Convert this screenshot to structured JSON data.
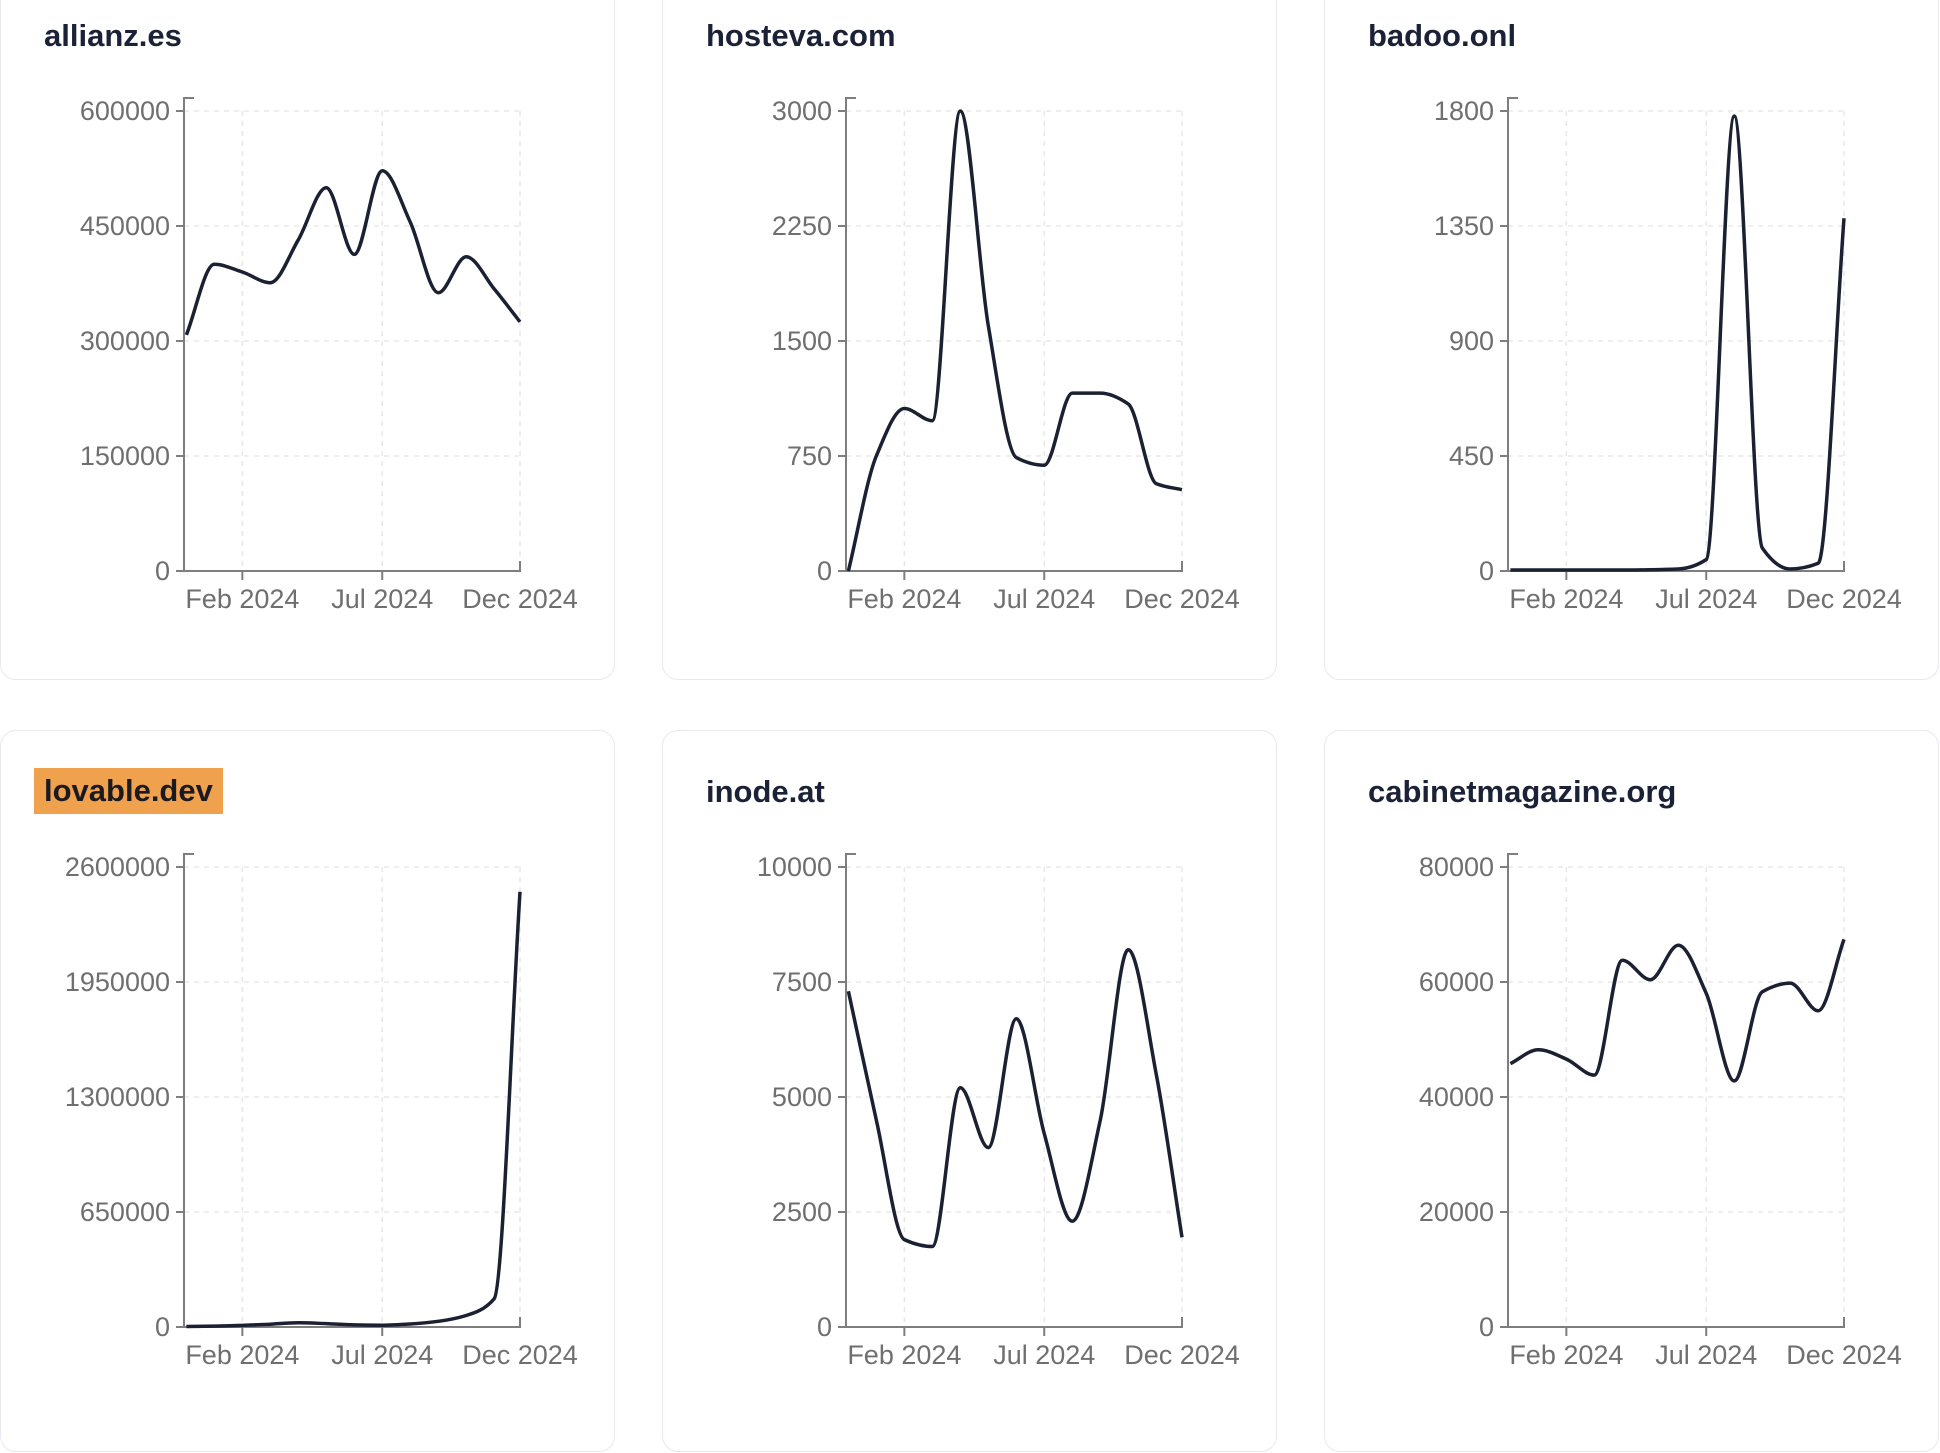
{
  "page": {
    "accent_highlight_color": "#f0a14e",
    "line_color": "#1b2132",
    "axis_color": "#7e7e7e",
    "grid_color": "#e8e8e8",
    "label_color": "#6f6f6f",
    "title_color": "#1b2237"
  },
  "chart_data": [
    {
      "type": "line",
      "title": "allianz.es",
      "highlighted": false,
      "x": [
        "Dec 2023",
        "Jan 2024",
        "Feb 2024",
        "Mar 2024",
        "Apr 2024",
        "May 2024",
        "Jun 2024",
        "Jul 2024",
        "Aug 2024",
        "Sep 2024",
        "Oct 2024",
        "Nov 2024",
        "Dec 2024"
      ],
      "values": [
        308000,
        400000,
        390000,
        376000,
        432000,
        500000,
        413000,
        522000,
        455000,
        363000,
        410000,
        368000,
        325000
      ],
      "y_ticks": [
        600000,
        450000,
        300000,
        150000,
        0
      ],
      "ylim": [
        0,
        600000
      ],
      "x_tick_labels": [
        "Feb 2024",
        "Jul 2024",
        "Dec 2024"
      ],
      "grid": "dashed",
      "legend": false
    },
    {
      "type": "line",
      "title": "hosteva.com",
      "highlighted": false,
      "x": [
        "Dec 2023",
        "Jan 2024",
        "Feb 2024",
        "Mar 2024",
        "Apr 2024",
        "May 2024",
        "Jun 2024",
        "Jul 2024",
        "Aug 2024",
        "Sep 2024",
        "Oct 2024",
        "Nov 2024",
        "Dec 2024"
      ],
      "values": [
        0,
        750,
        1060,
        980,
        3000,
        1600,
        740,
        690,
        1160,
        1160,
        1090,
        570,
        530
      ],
      "y_ticks": [
        3000,
        2250,
        1500,
        750,
        0
      ],
      "ylim": [
        0,
        3000
      ],
      "x_tick_labels": [
        "Feb 2024",
        "Jul 2024",
        "Dec 2024"
      ],
      "grid": "dashed",
      "legend": false
    },
    {
      "type": "line",
      "title": "badoo.onl",
      "highlighted": false,
      "x": [
        "Dec 2023",
        "Jan 2024",
        "Feb 2024",
        "Mar 2024",
        "Apr 2024",
        "May 2024",
        "Jun 2024",
        "Jul 2024",
        "Aug 2024",
        "Sep 2024",
        "Oct 2024",
        "Nov 2024",
        "Dec 2024"
      ],
      "values": [
        4,
        4,
        4,
        4,
        4,
        5,
        8,
        45,
        1780,
        90,
        8,
        30,
        1380
      ],
      "y_ticks": [
        1800,
        1350,
        900,
        450,
        0
      ],
      "ylim": [
        0,
        1800
      ],
      "x_tick_labels": [
        "Feb 2024",
        "Jul 2024",
        "Dec 2024"
      ],
      "grid": "dashed",
      "legend": false
    },
    {
      "type": "line",
      "title": "lovable.dev",
      "highlighted": true,
      "x": [
        "Dec 2023",
        "Jan 2024",
        "Feb 2024",
        "Mar 2024",
        "Apr 2024",
        "May 2024",
        "Jun 2024",
        "Jul 2024",
        "Aug 2024",
        "Sep 2024",
        "Oct 2024",
        "Nov 2024",
        "Dec 2024"
      ],
      "values": [
        3000,
        5000,
        9000,
        16000,
        24000,
        19000,
        12000,
        10000,
        17000,
        32000,
        65000,
        160000,
        2460000
      ],
      "y_ticks": [
        2600000,
        1950000,
        1300000,
        650000,
        0
      ],
      "ylim": [
        0,
        2600000
      ],
      "x_tick_labels": [
        "Feb 2024",
        "Jul 2024",
        "Dec 2024"
      ],
      "grid": "dashed",
      "legend": false
    },
    {
      "type": "line",
      "title": "inode.at",
      "highlighted": false,
      "x": [
        "Dec 2023",
        "Jan 2024",
        "Feb 2024",
        "Mar 2024",
        "Apr 2024",
        "May 2024",
        "Jun 2024",
        "Jul 2024",
        "Aug 2024",
        "Sep 2024",
        "Oct 2024",
        "Nov 2024",
        "Dec 2024"
      ],
      "values": [
        7300,
        4500,
        1900,
        1750,
        5200,
        3900,
        6700,
        4200,
        2300,
        4500,
        8200,
        5500,
        1950
      ],
      "y_ticks": [
        10000,
        7500,
        5000,
        2500,
        0
      ],
      "ylim": [
        0,
        10000
      ],
      "x_tick_labels": [
        "Feb 2024",
        "Jul 2024",
        "Dec 2024"
      ],
      "grid": "dashed",
      "legend": false
    },
    {
      "type": "line",
      "title": "cabinetmagazine.org",
      "highlighted": false,
      "x": [
        "Dec 2023",
        "Jan 2024",
        "Feb 2024",
        "Mar 2024",
        "Apr 2024",
        "May 2024",
        "Jun 2024",
        "Jul 2024",
        "Aug 2024",
        "Sep 2024",
        "Oct 2024",
        "Nov 2024",
        "Dec 2024"
      ],
      "values": [
        45800,
        48200,
        46600,
        43800,
        63800,
        60400,
        66400,
        58000,
        42800,
        58300,
        59800,
        55000,
        67400
      ],
      "y_ticks": [
        80000,
        60000,
        40000,
        20000,
        0
      ],
      "ylim": [
        0,
        80000
      ],
      "x_tick_labels": [
        "Feb 2024",
        "Jul 2024",
        "Dec 2024"
      ],
      "grid": "dashed",
      "legend": false
    }
  ]
}
